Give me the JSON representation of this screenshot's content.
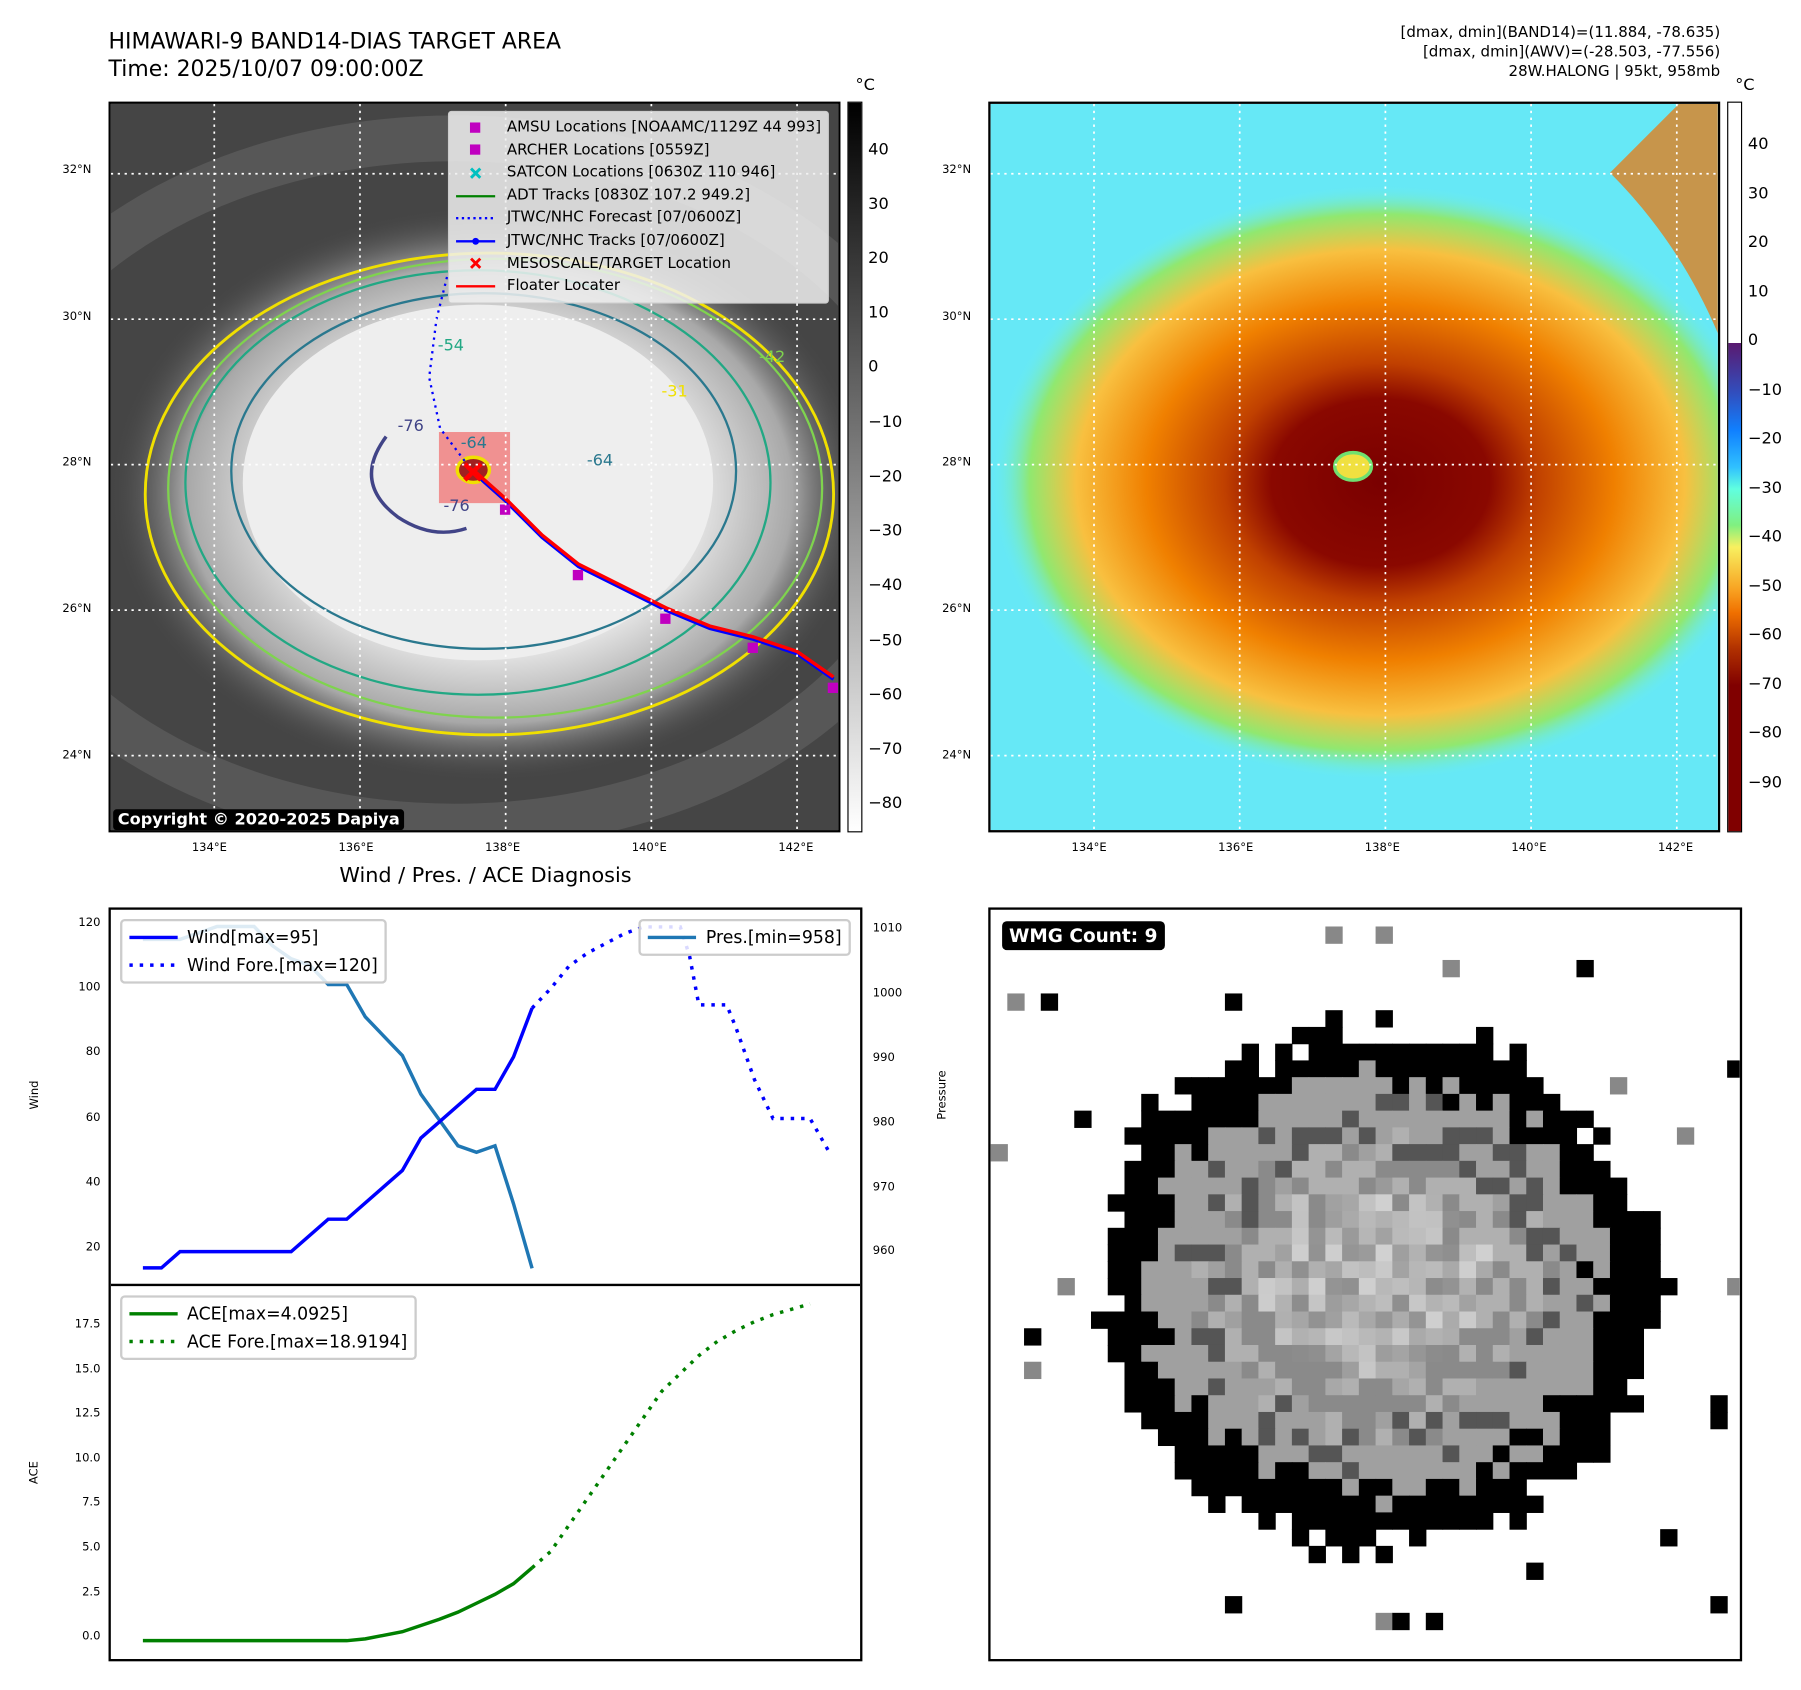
{
  "header": {
    "title": "HIMAWARI-9 BAND14-DIAS TARGET AREA",
    "time": "Time: 2025/10/07 09:00:00Z",
    "info_line1": "[dmax, dmin](BAND14)=(11.884, -78.635)",
    "info_line2": "[dmax, dmin](AWV)=(-28.503, -77.556)",
    "info_line3": "28W.HALONG | 95kt, 958mb"
  },
  "map": {
    "lat_labels": [
      "32°N",
      "30°N",
      "28°N",
      "26°N",
      "24°N"
    ],
    "lat_values": [
      32,
      30,
      28,
      26,
      24
    ],
    "lon_labels": [
      "134°E",
      "136°E",
      "138°E",
      "140°E",
      "142°E"
    ],
    "lon_values": [
      134,
      136,
      138,
      140,
      142
    ],
    "copyright": "Copyright © 2020-2025 Dapiya",
    "storm_center": [
      137.55,
      27.9
    ],
    "best_track": [
      [
        137.55,
        27.9
      ],
      [
        138.0,
        27.5
      ],
      [
        138.5,
        27.0
      ],
      [
        139.0,
        26.6
      ],
      [
        139.6,
        26.3
      ],
      [
        140.2,
        26.0
      ],
      [
        140.8,
        25.75
      ],
      [
        141.4,
        25.6
      ],
      [
        142.0,
        25.4
      ],
      [
        142.5,
        25.05
      ]
    ],
    "forecast_track": [
      [
        137.55,
        27.9
      ],
      [
        137.1,
        28.5
      ],
      [
        136.95,
        29.2
      ],
      [
        137.05,
        30.0
      ],
      [
        137.2,
        30.6
      ]
    ],
    "contour_labels": [
      "-76",
      "-76",
      "-64",
      "-64",
      "-54",
      "-42",
      "-31"
    ],
    "legend": [
      {
        "label": "AMSU Locations [NOAAMC/1129Z 44 993]",
        "icon": "square-marker",
        "color": "#c000c0"
      },
      {
        "label": "ARCHER Locations [0559Z]",
        "icon": "square-marker",
        "color": "#c000c0"
      },
      {
        "label": "SATCON Locations [0630Z 110 946]",
        "icon": "x-marker",
        "color": "#00c0c0"
      },
      {
        "label": "ADT Tracks [0830Z 107.2 949.2]",
        "icon": "solid-line",
        "color": "#008000"
      },
      {
        "label": "JTWC/NHC Forecast [07/0600Z]",
        "icon": "dotted-line",
        "color": "#0000ff"
      },
      {
        "label": "JTWC/NHC Tracks [07/0600Z]",
        "icon": "line-dot",
        "color": "#0000ff"
      },
      {
        "label": "MESOSCALE/TARGET Location",
        "icon": "x-marker",
        "color": "#ff0000"
      },
      {
        "label": "Floater Locater",
        "icon": "solid-line",
        "color": "#ff0000"
      }
    ]
  },
  "colorbar_left": {
    "unit": "°C",
    "ticks": [
      "40",
      "30",
      "20",
      "10",
      "0",
      "−10",
      "−20",
      "−30",
      "−40",
      "−50",
      "−60",
      "−70",
      "−80"
    ],
    "range": [
      -85,
      49
    ]
  },
  "colorbar_right": {
    "unit": "°C",
    "ticks": [
      "40",
      "30",
      "20",
      "10",
      "0",
      "−10",
      "−20",
      "−30",
      "−40",
      "−50",
      "−60",
      "−70",
      "−80",
      "−90"
    ],
    "range": [
      -100,
      49
    ]
  },
  "diagnosis": {
    "title": "Wind / Pres. / ACE Diagnosis"
  },
  "wmg": {
    "label": "WMG Count: 9"
  },
  "chart_data": [
    {
      "type": "line",
      "title": "Wind / Pres. / ACE Diagnosis",
      "ylabel": "Wind",
      "y2label": "Pressure",
      "xlim": [
        -1.73,
        38.7
      ],
      "ylim": [
        10.1,
        125.3
      ],
      "y2lim": [
        955.6,
        1013.6
      ],
      "yticks": [
        20,
        40,
        60,
        80,
        100,
        120
      ],
      "y2ticks": [
        960,
        970,
        980,
        990,
        1000,
        1010
      ],
      "legend_left": [
        "Wind[max=95]",
        "Wind Fore.[max=120]"
      ],
      "legend_right": [
        "Pres.[min=958]"
      ],
      "series": [
        {
          "name": "Wind[max=95]",
          "axis": "left",
          "style": "solid",
          "color": "#0000ff",
          "x": [
            0,
            1,
            2,
            3,
            4,
            5,
            6,
            7,
            8,
            9,
            10,
            11,
            12,
            13,
            14,
            15,
            16,
            17,
            18,
            19,
            20,
            21
          ],
          "values": [
            15,
            15,
            20,
            20,
            20,
            20,
            20,
            20,
            20,
            25,
            30,
            30,
            35,
            40,
            45,
            55,
            60,
            65,
            70,
            70,
            80,
            95
          ]
        },
        {
          "name": "Wind Fore.[max=120]",
          "axis": "left",
          "style": "dotted",
          "color": "#0000ff",
          "x": [
            21,
            22,
            23,
            24,
            25,
            26,
            27,
            29,
            29.5,
            30,
            31.5,
            32,
            33,
            34,
            36,
            37
          ],
          "values": [
            95,
            101,
            108,
            112,
            115,
            118,
            120,
            120,
            111,
            96,
            96,
            89,
            73,
            61,
            61,
            51
          ]
        },
        {
          "name": "Pres.[min=958]",
          "axis": "right",
          "style": "solid",
          "color": "#1f77b4",
          "x": [
            0,
            1,
            2,
            3,
            4,
            5,
            6,
            7,
            8,
            9,
            10,
            11,
            12,
            13,
            14,
            15,
            16,
            17,
            18,
            19,
            20,
            21
          ],
          "values": [
            1009,
            1009,
            1009,
            1010,
            1011,
            1011,
            1011,
            1008,
            1006,
            1005,
            1002,
            1002,
            997,
            994,
            991,
            985,
            981,
            977,
            976,
            977,
            968,
            958
          ]
        }
      ]
    },
    {
      "type": "line",
      "ylabel": "ACE",
      "xlim": [
        -1.73,
        38.7
      ],
      "ylim": [
        -1.03,
        19.9
      ],
      "yticks": [
        "0.0",
        "2.5",
        "5.0",
        "7.5",
        "10.0",
        "12.5",
        "15.0",
        "17.5"
      ],
      "legend": [
        "ACE[max=4.0925]",
        "ACE Fore.[max=18.9194]"
      ],
      "series": [
        {
          "name": "ACE[max=4.0925]",
          "style": "solid",
          "color": "#008000",
          "x": [
            0,
            11,
            12,
            13,
            14,
            15,
            16,
            17,
            18,
            19,
            20,
            21
          ],
          "values": [
            0,
            0,
            0.1,
            0.3,
            0.5,
            0.85,
            1.2,
            1.6,
            2.1,
            2.6,
            3.2,
            4.09
          ]
        },
        {
          "name": "ACE Fore.[max=18.9194]",
          "style": "dotted",
          "color": "#008000",
          "x": [
            21,
            22,
            23,
            24,
            25,
            26,
            27,
            28,
            29,
            30,
            31,
            32,
            33,
            34,
            35,
            36
          ],
          "values": [
            4.09,
            5.0,
            6.5,
            8.0,
            9.5,
            11.0,
            12.5,
            14.0,
            15.0,
            16.0,
            16.8,
            17.4,
            17.9,
            18.3,
            18.6,
            18.9
          ]
        }
      ]
    }
  ]
}
